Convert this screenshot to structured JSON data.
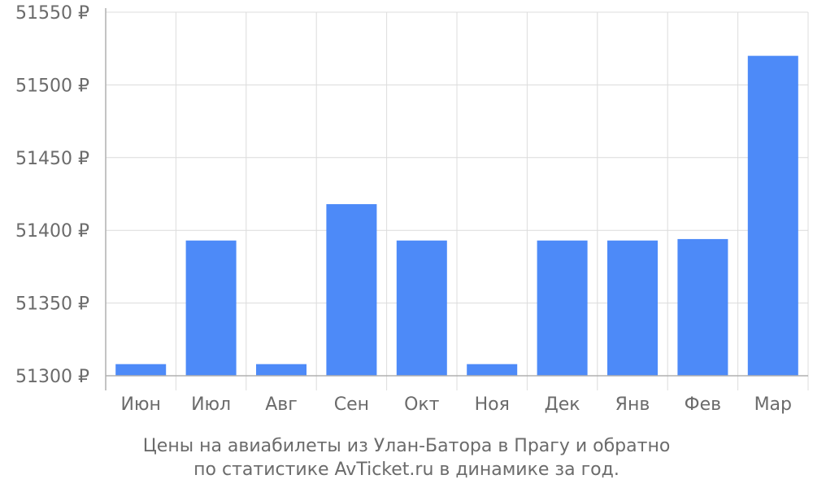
{
  "chart_data": {
    "type": "bar",
    "categories": [
      "Июн",
      "Июл",
      "Авг",
      "Сен",
      "Окт",
      "Ноя",
      "Дек",
      "Янв",
      "Фев",
      "Мар"
    ],
    "values": [
      51308,
      51393,
      51308,
      51418,
      51393,
      51308,
      51393,
      51393,
      51394,
      51520
    ],
    "ylim": [
      51300,
      51550
    ],
    "yticks": [
      51300,
      51350,
      51400,
      51450,
      51500,
      51550
    ],
    "ytick_labels": [
      "51300 ₽",
      "51350 ₽",
      "51400 ₽",
      "51450 ₽",
      "51500 ₽",
      "51550 ₽"
    ],
    "caption_lines": [
      "Цены на авиабилеты из Улан-Батора в Прагу и обратно",
      "по статистике AvTicket.ru в динамике за год."
    ],
    "grid": true,
    "bar_color": "#4d8af8"
  }
}
